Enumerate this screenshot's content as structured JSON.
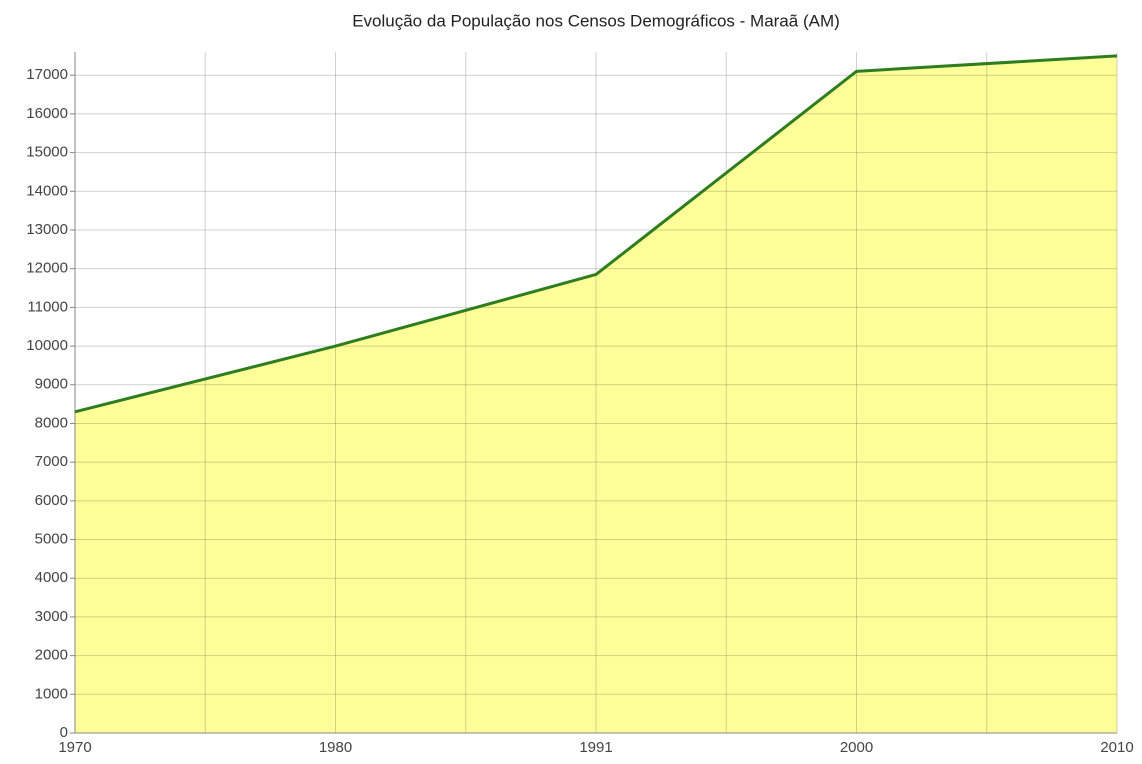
{
  "chart_data": {
    "type": "area",
    "title": "Evolução da População nos Censos Demográficos - Maraã (AM)",
    "categories": [
      "1970",
      "1980",
      "1991",
      "2000",
      "2010"
    ],
    "series": [
      {
        "values": [
          8300,
          10000,
          11850,
          17100,
          17500
        ],
        "color": "#2e7d1e",
        "fill": "#ffff99"
      }
    ],
    "ylim": [
      0,
      17600
    ],
    "yticks": [
      0,
      1000,
      2000,
      3000,
      4000,
      5000,
      6000,
      7000,
      8000,
      9000,
      10000,
      11000,
      12000,
      13000,
      14000,
      15000,
      16000,
      17000
    ],
    "grid": true
  }
}
